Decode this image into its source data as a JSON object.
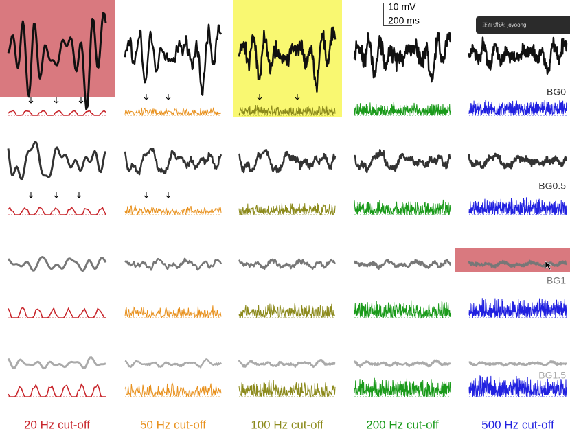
{
  "scale_bar": {
    "voltage": "10 mV",
    "time": "200 ms"
  },
  "rows": [
    "BG0",
    "BG0.5",
    "BG1",
    "BG1.5"
  ],
  "columns": [
    "20 Hz cut-off",
    "50 Hz cut-off",
    "100 Hz cut-off",
    "200 Hz cut-off",
    "500 Hz cut-off"
  ],
  "overlay": {
    "speaker": "正在讲话: joyoong"
  }
}
